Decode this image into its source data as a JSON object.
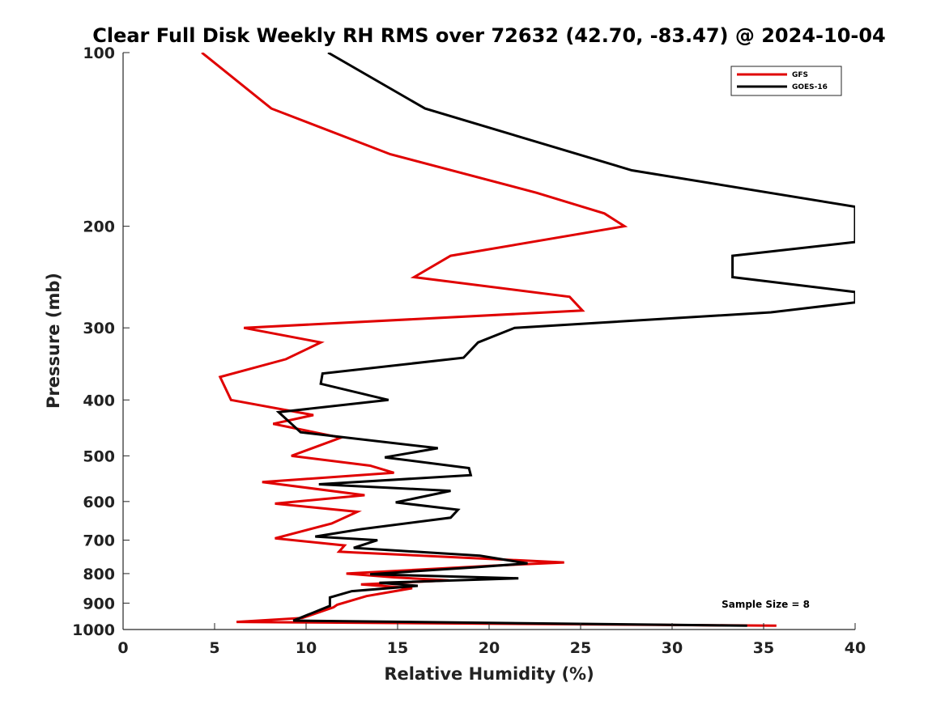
{
  "chart_data": {
    "type": "line",
    "title": "Clear Full Disk Weekly RH RMS over 72632 (42.70, -83.47) @ 2024-10-04",
    "xlabel": "Relative Humidity (%)",
    "ylabel": "Pressure (mb)",
    "xlim": [
      0,
      40
    ],
    "ylim": [
      100,
      1000
    ],
    "y_scale": "log",
    "y_reversed": true,
    "x_ticks": [
      0,
      5,
      10,
      15,
      20,
      25,
      30,
      35,
      40
    ],
    "y_ticks": [
      100,
      200,
      300,
      400,
      500,
      600,
      700,
      800,
      900,
      1000
    ],
    "grid": false,
    "legend_position": "top-right",
    "annotation": "Sample Size = 8",
    "series": [
      {
        "name": "GFS",
        "color": "#e00000",
        "points": [
          [
            4.3,
            100
          ],
          [
            8.1,
            125
          ],
          [
            14.6,
            150
          ],
          [
            22.6,
            175
          ],
          [
            26.3,
            190
          ],
          [
            27.4,
            200
          ],
          [
            17.9,
            225
          ],
          [
            15.9,
            245
          ],
          [
            24.4,
            265
          ],
          [
            25.1,
            280
          ],
          [
            6.6,
            300
          ],
          [
            10.8,
            318
          ],
          [
            8.9,
            340
          ],
          [
            5.3,
            365
          ],
          [
            5.9,
            400
          ],
          [
            10.4,
            425
          ],
          [
            8.2,
            440
          ],
          [
            11.9,
            465
          ],
          [
            9.2,
            500
          ],
          [
            13.5,
            520
          ],
          [
            14.8,
            535
          ],
          [
            7.6,
            555
          ],
          [
            13.2,
            585
          ],
          [
            8.3,
            605
          ],
          [
            12.8,
            625
          ],
          [
            11.4,
            655
          ],
          [
            8.3,
            695
          ],
          [
            12.1,
            715
          ],
          [
            11.8,
            733
          ],
          [
            12.6,
            735
          ],
          [
            24.1,
            765
          ],
          [
            20.2,
            775
          ],
          [
            12.2,
            800
          ],
          [
            14.8,
            812
          ],
          [
            17.8,
            822
          ],
          [
            13.0,
            835
          ],
          [
            15.8,
            848
          ],
          [
            13.3,
            875
          ],
          [
            11.7,
            906
          ],
          [
            11.5,
            915
          ],
          [
            9.8,
            955
          ],
          [
            6.2,
            970
          ],
          [
            9.8,
            972
          ],
          [
            35.7,
            985
          ]
        ]
      },
      {
        "name": "GOES-16",
        "color": "#000000",
        "points": [
          [
            11.2,
            100
          ],
          [
            16.5,
            125
          ],
          [
            27.8,
            160
          ],
          [
            40.0,
            185
          ],
          [
            40.0,
            213
          ],
          [
            33.3,
            225
          ],
          [
            33.3,
            245
          ],
          [
            40.0,
            260
          ],
          [
            40.0,
            271
          ],
          [
            35.4,
            282
          ],
          [
            21.4,
            300
          ],
          [
            19.4,
            318
          ],
          [
            18.6,
            338
          ],
          [
            10.9,
            360
          ],
          [
            10.8,
            375
          ],
          [
            14.5,
            400
          ],
          [
            8.5,
            420
          ],
          [
            9.2,
            440
          ],
          [
            9.7,
            455
          ],
          [
            17.2,
            485
          ],
          [
            14.3,
            503
          ],
          [
            18.9,
            525
          ],
          [
            19.0,
            540
          ],
          [
            10.7,
            560
          ],
          [
            17.9,
            575
          ],
          [
            14.9,
            602
          ],
          [
            18.3,
            620
          ],
          [
            17.9,
            640
          ],
          [
            13.0,
            670
          ],
          [
            10.5,
            690
          ],
          [
            13.9,
            700
          ],
          [
            12.6,
            722
          ],
          [
            19.5,
            745
          ],
          [
            22.1,
            768
          ],
          [
            19.2,
            780
          ],
          [
            13.5,
            802
          ],
          [
            21.6,
            815
          ],
          [
            14.0,
            830
          ],
          [
            16.1,
            840
          ],
          [
            12.5,
            858
          ],
          [
            11.3,
            880
          ],
          [
            11.3,
            910
          ],
          [
            9.3,
            965
          ],
          [
            34.1,
            985
          ]
        ]
      }
    ]
  }
}
